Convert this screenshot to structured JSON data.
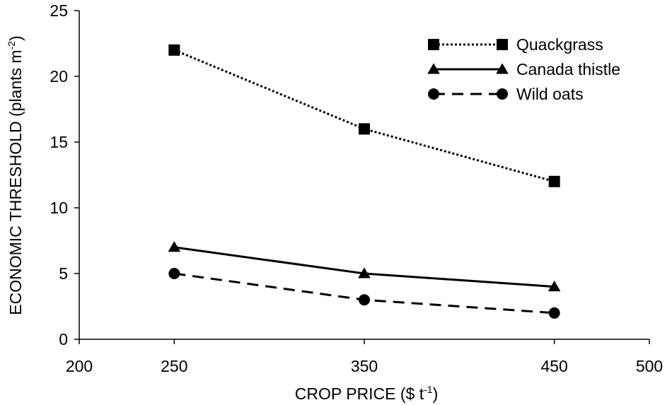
{
  "chart_data": {
    "type": "line",
    "title": "",
    "xlabel": "CROP PRICE ($ t",
    "xlabel_sup": "-1",
    "xlabel_end": ")",
    "ylabel": "ECONOMIC THRESHOLD (plants m",
    "ylabel_sup": "-2",
    "ylabel_end": ")",
    "xlim": [
      200,
      500
    ],
    "ylim": [
      0,
      25
    ],
    "x_ticks": [
      {
        "value": 200,
        "label": "200"
      },
      {
        "value": 250,
        "label": "250"
      },
      {
        "value": 350,
        "label": "350"
      },
      {
        "value": 450,
        "label": "450"
      },
      {
        "value": 500,
        "label": "500"
      }
    ],
    "y_ticks": [
      {
        "value": 0,
        "label": "0"
      },
      {
        "value": 5,
        "label": "5"
      },
      {
        "value": 10,
        "label": "10"
      },
      {
        "value": 15,
        "label": "15"
      },
      {
        "value": 20,
        "label": "20"
      },
      {
        "value": 25,
        "label": "25"
      }
    ],
    "x": [
      250,
      350,
      450
    ],
    "series": [
      {
        "name": "Quackgrass",
        "values": [
          22,
          16,
          12
        ],
        "marker": "square",
        "line": "dotted",
        "color": "#000000"
      },
      {
        "name": "Canada thistle",
        "values": [
          7,
          5,
          4
        ],
        "marker": "triangle",
        "line": "solid",
        "color": "#000000"
      },
      {
        "name": "Wild oats",
        "values": [
          5,
          3,
          2
        ],
        "marker": "circle",
        "line": "dashed",
        "color": "#000000"
      }
    ],
    "grid": false,
    "legend_position": "top-right"
  }
}
